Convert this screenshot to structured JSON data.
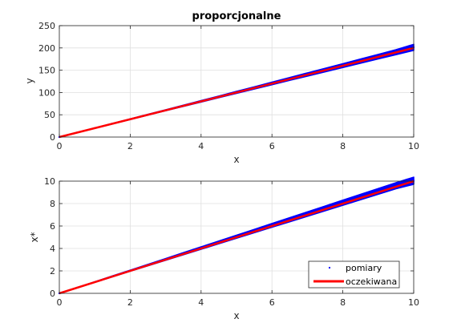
{
  "chart_data": [
    {
      "type": "scatter",
      "title": "proporcjonalne",
      "xlabel": "x",
      "ylabel": "y",
      "xlim": [
        0,
        10
      ],
      "ylim": [
        0,
        250
      ],
      "xticks": [
        0,
        2,
        4,
        6,
        8,
        10
      ],
      "yticks": [
        0,
        50,
        100,
        150,
        200,
        250
      ],
      "grid": true,
      "legend": null,
      "series": [
        {
          "kind": "markers",
          "color": "#0000ff",
          "x": [
            0,
            0.5,
            1,
            1.5,
            2,
            2.5,
            3,
            3.5,
            4,
            4.5,
            5,
            5.5,
            6,
            6.5,
            7,
            7.5,
            8,
            8.5,
            9,
            9.5,
            10
          ],
          "y_low": [
            0,
            9.9,
            19.8,
            29.6,
            39.5,
            49.3,
            59.1,
            68.9,
            78.6,
            88.4,
            98.1,
            107.8,
            117.5,
            127.2,
            136.8,
            146.5,
            156.1,
            165.7,
            175.3,
            184.9,
            194.5
          ],
          "y_high": [
            0,
            10.2,
            20.4,
            30.6,
            40.7,
            50.9,
            61.1,
            71.4,
            81.7,
            92.0,
            102.4,
            112.7,
            123.1,
            133.5,
            143.9,
            154.2,
            164.6,
            175.0,
            185.4,
            196.0,
            208.0
          ]
        },
        {
          "kind": "line",
          "color": "#ff0000",
          "x": [
            0,
            10
          ],
          "y": [
            0,
            200
          ]
        }
      ]
    },
    {
      "type": "scatter",
      "title": "",
      "xlabel": "x",
      "ylabel": "x*",
      "xlim": [
        0,
        10
      ],
      "ylim": [
        0,
        10
      ],
      "xticks": [
        0,
        2,
        4,
        6,
        8,
        10
      ],
      "yticks": [
        0,
        2,
        4,
        6,
        8,
        10
      ],
      "grid": true,
      "legend": {
        "position": "bottom-right",
        "entries": [
          "pomiary",
          "oczekiwana"
        ]
      },
      "series": [
        {
          "name": "pomiary",
          "kind": "markers",
          "color": "#0000ff",
          "x": [
            0,
            0.5,
            1,
            1.5,
            2,
            2.5,
            3,
            3.5,
            4,
            4.5,
            5,
            5.5,
            6,
            6.5,
            7,
            7.5,
            8,
            8.5,
            9,
            9.5,
            10
          ],
          "y_low": [
            0,
            0.49,
            0.98,
            1.47,
            1.97,
            2.46,
            2.95,
            3.44,
            3.93,
            4.42,
            4.91,
            5.4,
            5.89,
            6.38,
            6.87,
            7.36,
            7.85,
            8.34,
            8.83,
            9.32,
            9.72
          ],
          "y_high": [
            0,
            0.52,
            1.03,
            1.55,
            2.06,
            2.58,
            3.1,
            3.62,
            4.14,
            4.66,
            5.18,
            5.7,
            6.22,
            6.74,
            7.26,
            7.78,
            8.3,
            8.82,
            9.34,
            9.86,
            10.35
          ]
        },
        {
          "name": "oczekiwana",
          "kind": "line",
          "color": "#ff0000",
          "x": [
            0,
            10
          ],
          "y": [
            0,
            10
          ]
        }
      ]
    }
  ]
}
